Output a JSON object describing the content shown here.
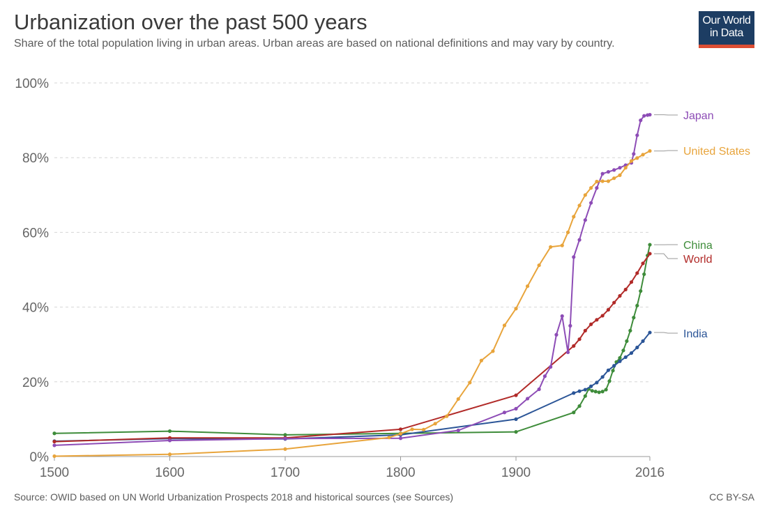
{
  "header": {
    "title": "Urbanization over the past 500 years",
    "subtitle": "Share of the total population living in urban areas. Urban areas are based on national definitions and may vary by country."
  },
  "logo": {
    "line1": "Our World",
    "line2": "in Data",
    "bg_color": "#1d3d63",
    "accent_color": "#dc4d33"
  },
  "footer": {
    "source": "Source: OWID based on UN World Urbanization Prospects 2018 and historical sources (see Sources)",
    "license": "CC BY-SA"
  },
  "chart_data": {
    "type": "line",
    "title": "Urbanization over the past 500 years",
    "xlabel": "",
    "ylabel": "",
    "xlim": [
      1500,
      2016
    ],
    "ylim": [
      0,
      100
    ],
    "x_ticks": [
      1500,
      1600,
      1700,
      1800,
      1900,
      2016
    ],
    "x_tick_labels": [
      "1500",
      "1600",
      "1700",
      "1800",
      "1900",
      "2016"
    ],
    "y_ticks": [
      0,
      20,
      40,
      60,
      80,
      100
    ],
    "y_tick_labels": [
      "0%",
      "20%",
      "40%",
      "60%",
      "80%",
      "100%"
    ],
    "grid": "horizontal-dashed",
    "legend": "line-end labels (right)",
    "series": [
      {
        "name": "China",
        "color": "#3e8c3a",
        "x": [
          1500,
          1600,
          1700,
          1800,
          1900,
          1950,
          1955,
          1960,
          1963,
          1966,
          1969,
          1972,
          1975,
          1978,
          1981,
          1984,
          1987,
          1990,
          1993,
          1996,
          1999,
          2002,
          2005,
          2008,
          2011,
          2014,
          2016
        ],
        "y": [
          6.2,
          6.8,
          5.8,
          6.2,
          6.6,
          11.8,
          13.5,
          16.2,
          18.1,
          17.6,
          17.4,
          17.2,
          17.4,
          17.9,
          20.2,
          23.0,
          25.3,
          26.4,
          28.4,
          30.9,
          33.7,
          37.2,
          40.4,
          44.3,
          48.8,
          53.8,
          56.7
        ]
      },
      {
        "name": "India",
        "color": "#2b5597",
        "x": [
          1500,
          1600,
          1700,
          1800,
          1900,
          1950,
          1955,
          1960,
          1965,
          1970,
          1975,
          1980,
          1985,
          1990,
          1995,
          2000,
          2005,
          2010,
          2016
        ],
        "y": [
          4.1,
          4.8,
          4.7,
          5.8,
          10.0,
          17.0,
          17.5,
          17.9,
          18.8,
          19.8,
          21.3,
          23.1,
          24.3,
          25.5,
          26.6,
          27.7,
          29.2,
          30.9,
          33.2
        ]
      },
      {
        "name": "World",
        "color": "#b12a28",
        "x": [
          1500,
          1600,
          1700,
          1800,
          1900,
          1950,
          1955,
          1960,
          1965,
          1970,
          1975,
          1980,
          1985,
          1990,
          1995,
          2000,
          2005,
          2010,
          2016
        ],
        "y": [
          4.0,
          5.0,
          5.0,
          7.3,
          16.4,
          29.6,
          31.4,
          33.7,
          35.4,
          36.6,
          37.7,
          39.3,
          41.2,
          43.0,
          44.7,
          46.7,
          49.1,
          51.7,
          54.3
        ]
      },
      {
        "name": "Japan",
        "color": "#8d4cb6",
        "x": [
          1500,
          1600,
          1700,
          1800,
          1850,
          1890,
          1900,
          1910,
          1920,
          1925,
          1930,
          1935,
          1940,
          1945,
          1947,
          1950,
          1955,
          1960,
          1965,
          1970,
          1975,
          1980,
          1985,
          1990,
          1995,
          2000,
          2002,
          2005,
          2008,
          2011,
          2014,
          2016
        ],
        "y": [
          3.0,
          4.3,
          4.8,
          4.9,
          7.0,
          11.8,
          12.8,
          15.5,
          18.0,
          21.5,
          24.0,
          32.6,
          37.6,
          27.9,
          35.0,
          53.4,
          58.0,
          63.3,
          67.9,
          71.9,
          75.7,
          76.2,
          76.7,
          77.3,
          78.0,
          78.6,
          81.0,
          86.0,
          90.0,
          91.2,
          91.4,
          91.5
        ]
      },
      {
        "name": "United States",
        "color": "#e8a43b",
        "x": [
          1500,
          1600,
          1700,
          1790,
          1800,
          1810,
          1820,
          1830,
          1840,
          1850,
          1860,
          1870,
          1880,
          1890,
          1900,
          1910,
          1920,
          1930,
          1940,
          1945,
          1950,
          1955,
          1960,
          1965,
          1970,
          1975,
          1980,
          1985,
          1990,
          1995,
          2000,
          2005,
          2010,
          2016
        ],
        "y": [
          0.1,
          0.6,
          2.0,
          5.1,
          6.1,
          7.3,
          7.2,
          8.8,
          10.8,
          15.4,
          19.8,
          25.7,
          28.2,
          35.1,
          39.6,
          45.6,
          51.2,
          56.1,
          56.5,
          60.0,
          64.2,
          67.2,
          70.0,
          71.9,
          73.6,
          73.7,
          73.7,
          74.5,
          75.3,
          77.3,
          79.1,
          79.9,
          80.8,
          81.8
        ]
      }
    ]
  }
}
